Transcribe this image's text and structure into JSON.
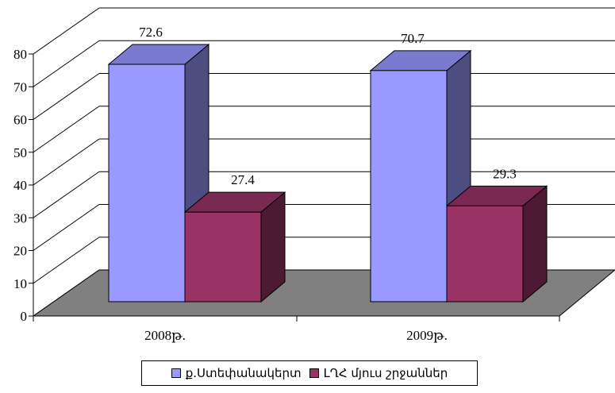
{
  "chart_data": {
    "type": "bar",
    "categories": [
      "2008թ.",
      "2009թ."
    ],
    "series": [
      {
        "name": "ք.Ստեփանակերտ",
        "values": [
          72.6,
          70.7
        ]
      },
      {
        "name": "ԼՂՀ մյուս շրջաններ",
        "values": [
          27.4,
          29.3
        ]
      }
    ],
    "data_labels": [
      "72.6",
      "27.4",
      "70.7",
      "29.3"
    ],
    "yticks": [
      "0",
      "10",
      "20",
      "30",
      "40",
      "50",
      "60",
      "70",
      "80"
    ],
    "ylim": [
      0,
      80
    ],
    "grid": true,
    "style": "3d-clustered-column",
    "legend_position": "bottom",
    "colors": {
      "series_fills": [
        "#9999ff",
        "#993366"
      ],
      "series_tops": [
        "#7a7ad0",
        "#7a2952"
      ],
      "series_sides": [
        "#4d4d80",
        "#4d1a33"
      ],
      "floor": "#808080",
      "wall": "#ffffff",
      "grid": "#000000"
    }
  }
}
